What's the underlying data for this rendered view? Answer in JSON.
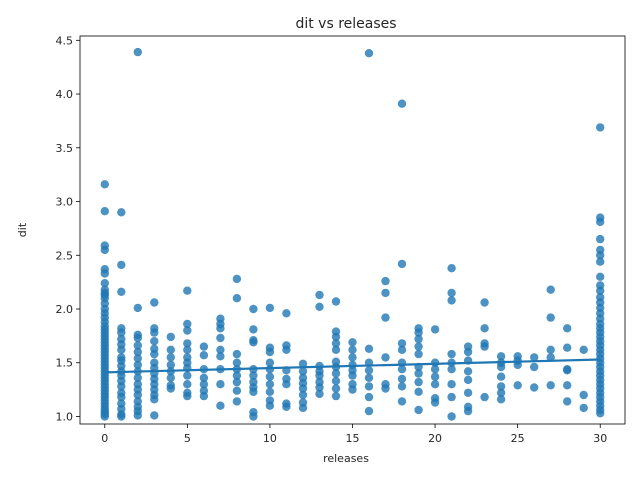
{
  "chart_data": {
    "type": "scatter",
    "title": "dit vs releases",
    "xlabel": "releases",
    "ylabel": "dit",
    "xlim": [
      -1.5,
      31.5
    ],
    "ylim": [
      0.93,
      4.54
    ],
    "xticks": [
      0,
      5,
      10,
      15,
      20,
      25,
      30
    ],
    "yticks": [
      1.0,
      1.5,
      2.0,
      2.5,
      3.0,
      3.5,
      4.0,
      4.5
    ],
    "ytick_labels": [
      "1.0",
      "1.5",
      "2.0",
      "2.5",
      "3.0",
      "3.5",
      "4.0",
      "4.5"
    ],
    "grid": false,
    "point_color": "#1f77b4",
    "point_alpha": 0.8,
    "regression_line": {
      "x": [
        0,
        30
      ],
      "y": [
        1.41,
        1.53
      ],
      "color": "#1f77b4"
    },
    "points": [
      [
        0,
        3.16
      ],
      [
        0,
        2.91
      ],
      [
        0,
        2.59
      ],
      [
        0,
        2.55
      ],
      [
        0,
        2.37
      ],
      [
        0,
        2.33
      ],
      [
        0,
        2.24
      ],
      [
        0,
        2.18
      ],
      [
        0,
        2.15
      ],
      [
        0,
        2.13
      ],
      [
        0,
        2.1
      ],
      [
        0,
        2.05
      ],
      [
        0,
        2.0
      ],
      [
        0,
        1.96
      ],
      [
        0,
        1.92
      ],
      [
        0,
        1.88
      ],
      [
        0,
        1.84
      ],
      [
        0,
        1.81
      ],
      [
        0,
        1.78
      ],
      [
        0,
        1.75
      ],
      [
        0,
        1.72
      ],
      [
        0,
        1.69
      ],
      [
        0,
        1.66
      ],
      [
        0,
        1.63
      ],
      [
        0,
        1.6
      ],
      [
        0,
        1.57
      ],
      [
        0,
        1.54
      ],
      [
        0,
        1.51
      ],
      [
        0,
        1.48
      ],
      [
        0,
        1.45
      ],
      [
        0,
        1.42
      ],
      [
        0,
        1.39
      ],
      [
        0,
        1.36
      ],
      [
        0,
        1.33
      ],
      [
        0,
        1.3
      ],
      [
        0,
        1.27
      ],
      [
        0,
        1.24
      ],
      [
        0,
        1.21
      ],
      [
        0,
        1.18
      ],
      [
        0,
        1.15
      ],
      [
        0,
        1.12
      ],
      [
        0,
        1.09
      ],
      [
        0,
        1.06
      ],
      [
        0,
        1.04
      ],
      [
        0,
        1.02
      ],
      [
        0,
        1.0
      ],
      [
        1,
        2.9
      ],
      [
        1,
        2.41
      ],
      [
        1,
        2.16
      ],
      [
        1,
        1.82
      ],
      [
        1,
        1.78
      ],
      [
        1,
        1.72
      ],
      [
        1,
        1.67
      ],
      [
        1,
        1.62
      ],
      [
        1,
        1.55
      ],
      [
        1,
        1.52
      ],
      [
        1,
        1.47
      ],
      [
        1,
        1.42
      ],
      [
        1,
        1.38
      ],
      [
        1,
        1.33
      ],
      [
        1,
        1.28
      ],
      [
        1,
        1.22
      ],
      [
        1,
        1.18
      ],
      [
        1,
        1.12
      ],
      [
        1,
        1.07
      ],
      [
        1,
        1.02
      ],
      [
        1,
        1.0
      ],
      [
        2,
        4.39
      ],
      [
        2,
        2.01
      ],
      [
        2,
        1.76
      ],
      [
        2,
        1.73
      ],
      [
        2,
        1.66
      ],
      [
        2,
        1.6
      ],
      [
        2,
        1.54
      ],
      [
        2,
        1.48
      ],
      [
        2,
        1.42
      ],
      [
        2,
        1.36
      ],
      [
        2,
        1.3
      ],
      [
        2,
        1.25
      ],
      [
        2,
        1.2
      ],
      [
        2,
        1.14
      ],
      [
        2,
        1.09
      ],
      [
        2,
        1.05
      ],
      [
        2,
        1.01
      ],
      [
        3,
        2.06
      ],
      [
        3,
        1.82
      ],
      [
        3,
        1.78
      ],
      [
        3,
        1.7
      ],
      [
        3,
        1.63
      ],
      [
        3,
        1.58
      ],
      [
        3,
        1.5
      ],
      [
        3,
        1.45
      ],
      [
        3,
        1.4
      ],
      [
        3,
        1.35
      ],
      [
        3,
        1.3
      ],
      [
        3,
        1.25
      ],
      [
        3,
        1.2
      ],
      [
        3,
        1.16
      ],
      [
        3,
        1.01
      ],
      [
        4,
        1.74
      ],
      [
        4,
        1.62
      ],
      [
        4,
        1.55
      ],
      [
        4,
        1.48
      ],
      [
        4,
        1.42
      ],
      [
        4,
        1.36
      ],
      [
        4,
        1.29
      ],
      [
        4,
        1.26
      ],
      [
        5,
        2.17
      ],
      [
        5,
        1.86
      ],
      [
        5,
        1.8
      ],
      [
        5,
        1.68
      ],
      [
        5,
        1.62
      ],
      [
        5,
        1.55
      ],
      [
        5,
        1.5
      ],
      [
        5,
        1.45
      ],
      [
        5,
        1.38
      ],
      [
        5,
        1.3
      ],
      [
        5,
        1.22
      ],
      [
        5,
        1.19
      ],
      [
        6,
        1.65
      ],
      [
        6,
        1.57
      ],
      [
        6,
        1.44
      ],
      [
        6,
        1.36
      ],
      [
        6,
        1.3
      ],
      [
        6,
        1.24
      ],
      [
        6,
        1.19
      ],
      [
        7,
        1.91
      ],
      [
        7,
        1.86
      ],
      [
        7,
        1.82
      ],
      [
        7,
        1.73
      ],
      [
        7,
        1.62
      ],
      [
        7,
        1.56
      ],
      [
        7,
        1.44
      ],
      [
        7,
        1.3
      ],
      [
        7,
        1.1
      ],
      [
        8,
        2.28
      ],
      [
        8,
        2.1
      ],
      [
        8,
        1.58
      ],
      [
        8,
        1.5
      ],
      [
        8,
        1.44
      ],
      [
        8,
        1.38
      ],
      [
        8,
        1.32
      ],
      [
        8,
        1.24
      ],
      [
        8,
        1.14
      ],
      [
        9,
        2.0
      ],
      [
        9,
        1.81
      ],
      [
        9,
        1.71
      ],
      [
        9,
        1.69
      ],
      [
        9,
        1.44
      ],
      [
        9,
        1.38
      ],
      [
        9,
        1.32
      ],
      [
        9,
        1.27
      ],
      [
        9,
        1.23
      ],
      [
        9,
        1.04
      ],
      [
        9,
        1.0
      ],
      [
        10,
        2.01
      ],
      [
        10,
        1.64
      ],
      [
        10,
        1.6
      ],
      [
        10,
        1.5
      ],
      [
        10,
        1.44
      ],
      [
        10,
        1.37
      ],
      [
        10,
        1.3
      ],
      [
        10,
        1.23
      ],
      [
        10,
        1.15
      ],
      [
        10,
        1.1
      ],
      [
        11,
        1.96
      ],
      [
        11,
        1.66
      ],
      [
        11,
        1.62
      ],
      [
        11,
        1.43
      ],
      [
        11,
        1.35
      ],
      [
        11,
        1.3
      ],
      [
        11,
        1.12
      ],
      [
        11,
        1.09
      ],
      [
        12,
        1.49
      ],
      [
        12,
        1.42
      ],
      [
        12,
        1.36
      ],
      [
        12,
        1.31
      ],
      [
        12,
        1.26
      ],
      [
        12,
        1.2
      ],
      [
        12,
        1.13
      ],
      [
        12,
        1.08
      ],
      [
        13,
        2.13
      ],
      [
        13,
        2.02
      ],
      [
        13,
        1.47
      ],
      [
        13,
        1.42
      ],
      [
        13,
        1.38
      ],
      [
        13,
        1.32
      ],
      [
        13,
        1.27
      ],
      [
        13,
        1.21
      ],
      [
        14,
        2.07
      ],
      [
        14,
        1.79
      ],
      [
        14,
        1.74
      ],
      [
        14,
        1.68
      ],
      [
        14,
        1.62
      ],
      [
        14,
        1.51
      ],
      [
        14,
        1.46
      ],
      [
        14,
        1.4
      ],
      [
        14,
        1.33
      ],
      [
        14,
        1.26
      ],
      [
        14,
        1.19
      ],
      [
        15,
        1.69
      ],
      [
        15,
        1.62
      ],
      [
        15,
        1.55
      ],
      [
        15,
        1.48
      ],
      [
        15,
        1.43
      ],
      [
        15,
        1.38
      ],
      [
        15,
        1.3
      ],
      [
        15,
        1.25
      ],
      [
        16,
        4.38
      ],
      [
        16,
        1.63
      ],
      [
        16,
        1.5
      ],
      [
        16,
        1.43
      ],
      [
        16,
        1.36
      ],
      [
        16,
        1.28
      ],
      [
        16,
        1.18
      ],
      [
        16,
        1.05
      ],
      [
        17,
        2.26
      ],
      [
        17,
        2.15
      ],
      [
        17,
        1.92
      ],
      [
        17,
        1.55
      ],
      [
        17,
        1.3
      ],
      [
        17,
        1.26
      ],
      [
        18,
        3.91
      ],
      [
        18,
        2.42
      ],
      [
        18,
        1.68
      ],
      [
        18,
        1.62
      ],
      [
        18,
        1.5
      ],
      [
        18,
        1.44
      ],
      [
        18,
        1.35
      ],
      [
        18,
        1.28
      ],
      [
        18,
        1.14
      ],
      [
        19,
        1.82
      ],
      [
        19,
        1.78
      ],
      [
        19,
        1.72
      ],
      [
        19,
        1.65
      ],
      [
        19,
        1.58
      ],
      [
        19,
        1.46
      ],
      [
        19,
        1.4
      ],
      [
        19,
        1.32
      ],
      [
        19,
        1.23
      ],
      [
        19,
        1.06
      ],
      [
        20,
        1.81
      ],
      [
        20,
        1.5
      ],
      [
        20,
        1.44
      ],
      [
        20,
        1.37
      ],
      [
        20,
        1.3
      ],
      [
        20,
        1.17
      ],
      [
        20,
        1.13
      ],
      [
        21,
        2.38
      ],
      [
        21,
        2.15
      ],
      [
        21,
        2.08
      ],
      [
        21,
        1.58
      ],
      [
        21,
        1.5
      ],
      [
        21,
        1.44
      ],
      [
        21,
        1.3
      ],
      [
        21,
        1.18
      ],
      [
        21,
        1.0
      ],
      [
        22,
        1.65
      ],
      [
        22,
        1.6
      ],
      [
        22,
        1.52
      ],
      [
        22,
        1.42
      ],
      [
        22,
        1.34
      ],
      [
        22,
        1.22
      ],
      [
        22,
        1.09
      ],
      [
        22,
        1.05
      ],
      [
        23,
        2.06
      ],
      [
        23,
        1.82
      ],
      [
        23,
        1.68
      ],
      [
        23,
        1.65
      ],
      [
        23,
        1.18
      ],
      [
        24,
        1.56
      ],
      [
        24,
        1.5
      ],
      [
        24,
        1.46
      ],
      [
        24,
        1.37
      ],
      [
        24,
        1.28
      ],
      [
        24,
        1.22
      ],
      [
        24,
        1.16
      ],
      [
        25,
        1.56
      ],
      [
        25,
        1.52
      ],
      [
        25,
        1.48
      ],
      [
        25,
        1.29
      ],
      [
        26,
        1.55
      ],
      [
        26,
        1.46
      ],
      [
        26,
        1.27
      ],
      [
        27,
        2.18
      ],
      [
        27,
        1.92
      ],
      [
        27,
        1.62
      ],
      [
        27,
        1.55
      ],
      [
        27,
        1.29
      ],
      [
        28,
        1.82
      ],
      [
        28,
        1.64
      ],
      [
        28,
        1.44
      ],
      [
        28,
        1.43
      ],
      [
        28,
        1.29
      ],
      [
        28,
        1.14
      ],
      [
        29,
        1.62
      ],
      [
        29,
        1.2
      ],
      [
        29,
        1.08
      ],
      [
        30,
        3.69
      ],
      [
        30,
        2.85
      ],
      [
        30,
        2.81
      ],
      [
        30,
        2.65
      ],
      [
        30,
        2.55
      ],
      [
        30,
        2.5
      ],
      [
        30,
        2.44
      ],
      [
        30,
        2.3
      ],
      [
        30,
        2.22
      ],
      [
        30,
        2.17
      ],
      [
        30,
        2.11
      ],
      [
        30,
        2.06
      ],
      [
        30,
        2.01
      ],
      [
        30,
        1.96
      ],
      [
        30,
        1.91
      ],
      [
        30,
        1.86
      ],
      [
        30,
        1.82
      ],
      [
        30,
        1.78
      ],
      [
        30,
        1.74
      ],
      [
        30,
        1.7
      ],
      [
        30,
        1.66
      ],
      [
        30,
        1.62
      ],
      [
        30,
        1.58
      ],
      [
        30,
        1.54
      ],
      [
        30,
        1.5
      ],
      [
        30,
        1.46
      ],
      [
        30,
        1.42
      ],
      [
        30,
        1.38
      ],
      [
        30,
        1.34
      ],
      [
        30,
        1.3
      ],
      [
        30,
        1.26
      ],
      [
        30,
        1.22
      ],
      [
        30,
        1.18
      ],
      [
        30,
        1.14
      ],
      [
        30,
        1.1
      ],
      [
        30,
        1.06
      ],
      [
        30,
        1.03
      ]
    ]
  }
}
